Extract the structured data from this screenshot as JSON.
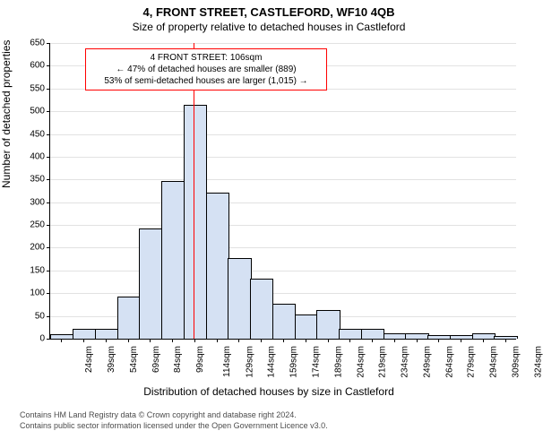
{
  "title_main": "4, FRONT STREET, CASTLEFORD, WF10 4QB",
  "title_sub": "Size of property relative to detached houses in Castleford",
  "ylabel": "Number of detached properties",
  "xlabel": "Distribution of detached houses by size in Castleford",
  "footer_line1": "Contains HM Land Registry data © Crown copyright and database right 2024.",
  "footer_line2": "Contains public sector information licensed under the Open Government Licence v3.0.",
  "chart": {
    "type": "histogram",
    "background_color": "#ffffff",
    "grid_color": "#c6c6c6",
    "bar_fill": "#d5e1f3",
    "bar_stroke": "#000000",
    "marker_color": "#ff0000",
    "ylim": [
      0,
      650
    ],
    "ytick_step": 50,
    "bar_count": 21,
    "x_labels": [
      "24sqm",
      "39sqm",
      "54sqm",
      "69sqm",
      "84sqm",
      "99sqm",
      "114sqm",
      "129sqm",
      "144sqm",
      "159sqm",
      "174sqm",
      "189sqm",
      "204sqm",
      "219sqm",
      "234sqm",
      "249sqm",
      "264sqm",
      "279sqm",
      "294sqm",
      "309sqm",
      "324sqm"
    ],
    "values": [
      7,
      20,
      20,
      90,
      240,
      345,
      512,
      320,
      175,
      130,
      75,
      52,
      62,
      20,
      20,
      10,
      10,
      5,
      5,
      10,
      3
    ],
    "marker_position_sqm": 106,
    "marker_bin_index": 6,
    "marker_frac_in_bin": 0.47,
    "annotation": {
      "line1": "4 FRONT STREET: 106sqm",
      "line2": "← 47% of detached houses are smaller (889)",
      "line3": "53% of semi-detached houses are larger (1,015) →",
      "border_color": "#ff0000"
    },
    "title_fontsize": 13,
    "subtitle_fontsize": 12,
    "axis_label_fontsize": 12,
    "tick_fontsize": 10,
    "annotation_fontsize": 10
  }
}
